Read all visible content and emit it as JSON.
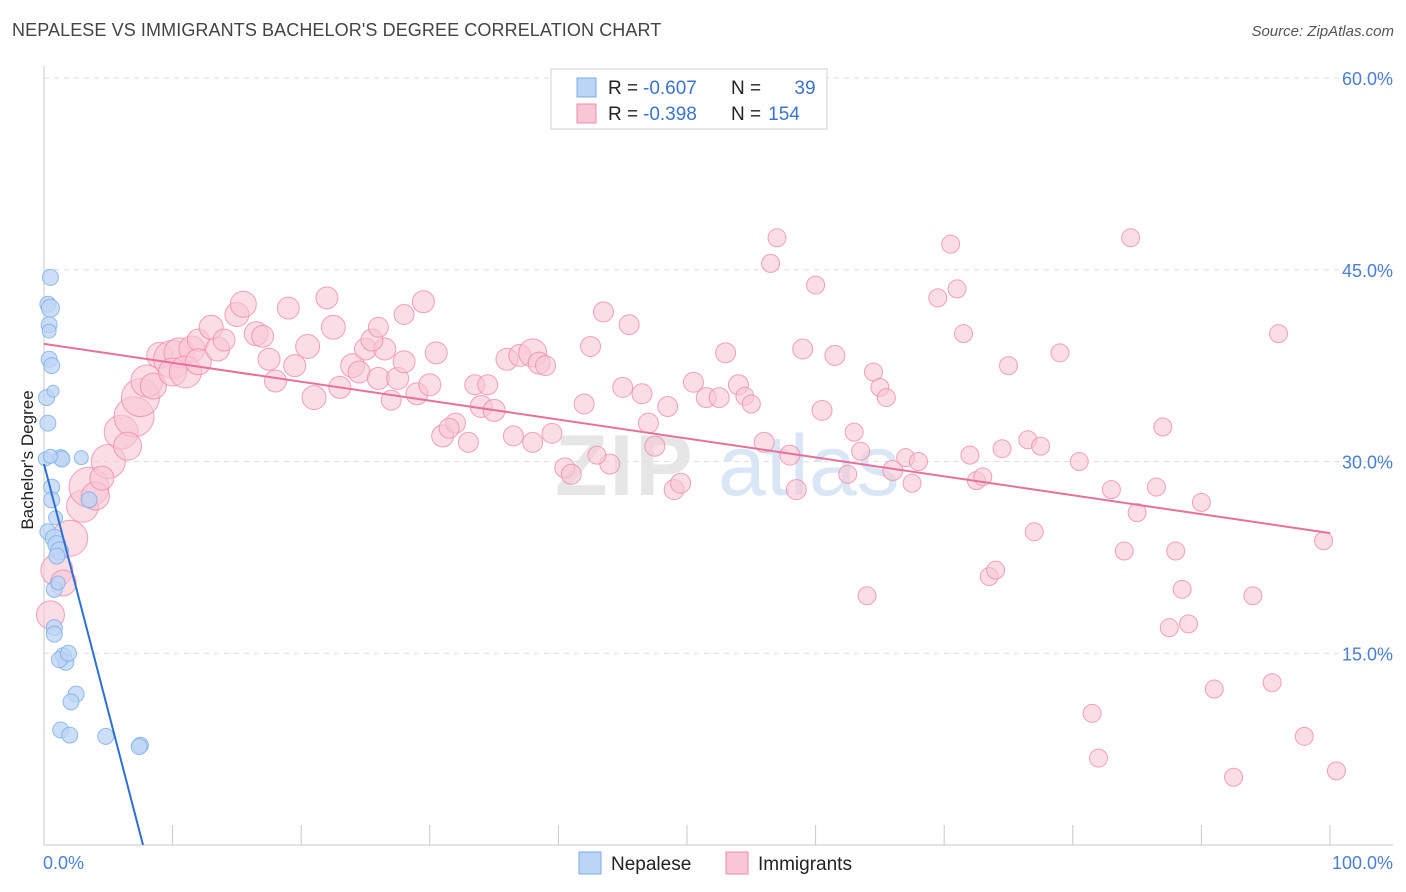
{
  "title": "NEPALESE VS IMMIGRANTS BACHELOR'S DEGREE CORRELATION CHART",
  "source": "Source: ZipAtlas.com",
  "chart_data": {
    "type": "scatter",
    "ylabel": "Bachelor's Degree",
    "xlim": [
      0,
      100
    ],
    "ylim": [
      0,
      60
    ],
    "x_tick_labels": [
      "0.0%",
      "100.0%"
    ],
    "y_ticks": [
      15,
      30,
      45,
      60
    ],
    "y_tick_labels": [
      "15.0%",
      "30.0%",
      "45.0%",
      "60.0%"
    ],
    "watermark": "ZIPatlas",
    "legend": [
      {
        "name": "Nepalese",
        "r_label": "R =",
        "r": "-0.607",
        "n_label": "N =",
        "n": "39",
        "color": "#7aaee8",
        "fill": "#bcd4f5"
      },
      {
        "name": "Immigrants",
        "r_label": "R =",
        "r": "-0.398",
        "n_label": "N =",
        "n": "154",
        "color": "#f08bab",
        "fill": "#f9c6d6"
      }
    ],
    "series": [
      {
        "name": "Nepalese",
        "color": "#7aaee8",
        "trend": {
          "x0": 0.0,
          "y0": 29.8,
          "x1": 7.7,
          "y1": 0.0,
          "color": "#2d6fd2"
        },
        "points": [
          [
            0.5,
            44.4,
            8
          ],
          [
            0.3,
            42.3,
            8
          ],
          [
            0.5,
            42.0,
            9
          ],
          [
            0.4,
            40.7,
            8
          ],
          [
            0.4,
            40.2,
            7
          ],
          [
            0.4,
            38.0,
            8
          ],
          [
            0.6,
            37.5,
            8
          ],
          [
            0.2,
            35.0,
            8
          ],
          [
            0.3,
            33.0,
            8
          ],
          [
            1.3,
            30.3,
            8
          ],
          [
            1.4,
            30.2,
            8
          ],
          [
            0.1,
            30.2,
            7
          ],
          [
            0.6,
            28.0,
            8
          ],
          [
            0.6,
            27.0,
            8
          ],
          [
            3.5,
            27.0,
            8
          ],
          [
            0.3,
            24.5,
            8
          ],
          [
            0.8,
            24.0,
            9
          ],
          [
            1.0,
            23.5,
            9
          ],
          [
            1.2,
            23.0,
            9
          ],
          [
            1.0,
            22.6,
            8
          ],
          [
            0.8,
            20.0,
            8
          ],
          [
            0.8,
            17.0,
            8
          ],
          [
            0.8,
            16.5,
            8
          ],
          [
            1.5,
            14.8,
            8
          ],
          [
            1.7,
            14.3,
            8
          ],
          [
            1.2,
            14.5,
            8
          ],
          [
            1.9,
            15.0,
            8
          ],
          [
            2.5,
            11.8,
            8
          ],
          [
            2.1,
            11.2,
            8
          ],
          [
            1.3,
            9.0,
            8
          ],
          [
            2.0,
            8.6,
            8
          ],
          [
            4.8,
            8.5,
            8
          ],
          [
            7.5,
            7.8,
            8
          ],
          [
            7.4,
            7.7,
            8
          ],
          [
            0.7,
            35.5,
            6
          ],
          [
            1.1,
            20.5,
            7
          ],
          [
            0.5,
            30.4,
            7
          ],
          [
            2.9,
            30.3,
            7
          ],
          [
            0.9,
            25.6,
            7
          ]
        ]
      },
      {
        "name": "Immigrants",
        "color": "#f08bab",
        "trend": {
          "x0": 0.0,
          "y0": 39.2,
          "x1": 100.0,
          "y1": 24.4,
          "color": "#e8709a"
        },
        "points": [
          [
            0.5,
            18.0,
            14
          ],
          [
            1.0,
            21.5,
            16
          ],
          [
            1.5,
            20.5,
            13
          ],
          [
            2.0,
            24.0,
            18
          ],
          [
            3.0,
            26.5,
            16
          ],
          [
            3.5,
            28.0,
            20
          ],
          [
            4.0,
            27.3,
            14
          ],
          [
            5.0,
            30.0,
            17
          ],
          [
            4.5,
            28.7,
            12
          ],
          [
            6.0,
            32.3,
            17
          ],
          [
            7.0,
            33.5,
            20
          ],
          [
            6.5,
            31.2,
            14
          ],
          [
            7.5,
            35.0,
            19
          ],
          [
            8.0,
            36.3,
            16
          ],
          [
            8.5,
            35.9,
            13
          ],
          [
            9.0,
            38.3,
            13
          ],
          [
            10.0,
            38.0,
            19
          ],
          [
            10.5,
            38.5,
            15
          ],
          [
            11.5,
            38.8,
            13
          ],
          [
            12.0,
            39.5,
            11
          ],
          [
            10.0,
            37.0,
            14
          ],
          [
            11.0,
            37.0,
            16
          ],
          [
            12.0,
            37.8,
            13
          ],
          [
            13.5,
            38.8,
            12
          ],
          [
            13.0,
            40.5,
            12
          ],
          [
            14.0,
            39.5,
            11
          ],
          [
            15.0,
            41.5,
            12
          ],
          [
            15.5,
            42.3,
            13
          ],
          [
            16.5,
            40.0,
            12
          ],
          [
            17.0,
            39.8,
            11
          ],
          [
            19.0,
            42.0,
            11
          ],
          [
            17.5,
            38.0,
            11
          ],
          [
            18.0,
            36.3,
            11
          ],
          [
            19.5,
            37.5,
            11
          ],
          [
            20.5,
            39.0,
            12
          ],
          [
            22.0,
            42.8,
            11
          ],
          [
            22.5,
            40.5,
            12
          ],
          [
            23.0,
            35.8,
            11
          ],
          [
            21.0,
            35.0,
            12
          ],
          [
            24.0,
            37.5,
            12
          ],
          [
            24.5,
            37.0,
            11
          ],
          [
            25.0,
            38.8,
            11
          ],
          [
            26.0,
            36.5,
            11
          ],
          [
            26.5,
            38.8,
            11
          ],
          [
            27.5,
            36.5,
            11
          ],
          [
            25.5,
            39.5,
            11
          ],
          [
            26.0,
            40.5,
            10
          ],
          [
            28.0,
            41.5,
            10
          ],
          [
            28.0,
            37.8,
            11
          ],
          [
            27.0,
            34.8,
            10
          ],
          [
            29.0,
            35.3,
            11
          ],
          [
            30.0,
            36.0,
            11
          ],
          [
            29.5,
            42.5,
            11
          ],
          [
            30.5,
            38.5,
            11
          ],
          [
            31.0,
            32.0,
            11
          ],
          [
            32.0,
            33.0,
            10
          ],
          [
            31.5,
            32.6,
            10
          ],
          [
            33.0,
            31.5,
            10
          ],
          [
            33.5,
            36.0,
            10
          ],
          [
            34.0,
            34.3,
            11
          ],
          [
            34.5,
            36.0,
            10
          ],
          [
            35.0,
            34.0,
            11
          ],
          [
            36.0,
            38.0,
            11
          ],
          [
            37.0,
            38.3,
            11
          ],
          [
            36.5,
            32.0,
            10
          ],
          [
            38.0,
            38.5,
            14
          ],
          [
            38.5,
            37.7,
            11
          ],
          [
            39.0,
            37.5,
            10
          ],
          [
            38.0,
            31.5,
            10
          ],
          [
            39.5,
            32.2,
            10
          ],
          [
            40.5,
            29.5,
            10
          ],
          [
            41.0,
            29.0,
            10
          ],
          [
            42.0,
            34.5,
            10
          ],
          [
            42.5,
            39.0,
            10
          ],
          [
            43.5,
            41.7,
            10
          ],
          [
            44.0,
            29.8,
            10
          ],
          [
            43.0,
            30.5,
            9
          ],
          [
            45.0,
            35.8,
            10
          ],
          [
            45.5,
            40.7,
            10
          ],
          [
            46.5,
            35.3,
            10
          ],
          [
            47.0,
            33.0,
            10
          ],
          [
            47.5,
            31.2,
            10
          ],
          [
            48.5,
            34.3,
            10
          ],
          [
            49.0,
            27.8,
            10
          ],
          [
            49.5,
            28.3,
            10
          ],
          [
            50.5,
            36.2,
            10
          ],
          [
            51.5,
            35.0,
            10
          ],
          [
            52.5,
            35.0,
            10
          ],
          [
            53.0,
            38.5,
            10
          ],
          [
            54.0,
            36.0,
            10
          ],
          [
            54.5,
            35.1,
            9
          ],
          [
            55.0,
            34.5,
            9
          ],
          [
            56.0,
            31.5,
            10
          ],
          [
            56.5,
            45.5,
            9
          ],
          [
            57.0,
            47.5,
            9
          ],
          [
            58.0,
            30.5,
            10
          ],
          [
            58.5,
            27.8,
            10
          ],
          [
            59.0,
            38.8,
            10
          ],
          [
            60.0,
            43.8,
            9
          ],
          [
            60.5,
            34.0,
            10
          ],
          [
            61.5,
            38.3,
            10
          ],
          [
            62.5,
            29.0,
            9
          ],
          [
            63.5,
            30.8,
            9
          ],
          [
            63.0,
            32.3,
            9
          ],
          [
            64.5,
            37.0,
            9
          ],
          [
            65.0,
            35.8,
            9
          ],
          [
            65.5,
            35.0,
            9
          ],
          [
            66.0,
            29.3,
            10
          ],
          [
            67.0,
            30.3,
            9
          ],
          [
            68.0,
            30.0,
            9
          ],
          [
            69.5,
            42.8,
            9
          ],
          [
            70.5,
            47.0,
            9
          ],
          [
            71.0,
            43.5,
            9
          ],
          [
            72.0,
            30.5,
            9
          ],
          [
            72.5,
            28.5,
            9
          ],
          [
            73.5,
            21.0,
            9
          ],
          [
            74.0,
            21.5,
            9
          ],
          [
            74.5,
            31.0,
            9
          ],
          [
            75.0,
            37.5,
            9
          ],
          [
            76.5,
            31.7,
            9
          ],
          [
            77.5,
            31.2,
            9
          ],
          [
            79.0,
            38.5,
            9
          ],
          [
            80.5,
            30.0,
            9
          ],
          [
            81.5,
            10.3,
            9
          ],
          [
            83.0,
            27.8,
            9
          ],
          [
            84.0,
            23.0,
            9
          ],
          [
            85.0,
            26.0,
            9
          ],
          [
            86.5,
            28.0,
            9
          ],
          [
            87.0,
            32.7,
            9
          ],
          [
            87.5,
            17.0,
            9
          ],
          [
            88.5,
            20.0,
            9
          ],
          [
            88.0,
            23.0,
            9
          ],
          [
            89.0,
            17.3,
            9
          ],
          [
            90.0,
            26.8,
            9
          ],
          [
            91.0,
            12.2,
            9
          ],
          [
            92.5,
            5.3,
            9
          ],
          [
            94.0,
            19.5,
            9
          ],
          [
            95.5,
            12.7,
            9
          ],
          [
            96.0,
            40.0,
            9
          ],
          [
            98.0,
            8.5,
            9
          ],
          [
            99.5,
            23.8,
            9
          ],
          [
            100.5,
            5.8,
            9
          ],
          [
            84.5,
            47.5,
            9
          ],
          [
            71.5,
            40.0,
            9
          ],
          [
            67.5,
            28.3,
            9
          ],
          [
            64.0,
            19.5,
            9
          ],
          [
            73.0,
            28.8,
            9
          ],
          [
            82.0,
            6.8,
            9
          ],
          [
            77.0,
            24.5,
            9
          ]
        ]
      }
    ]
  }
}
